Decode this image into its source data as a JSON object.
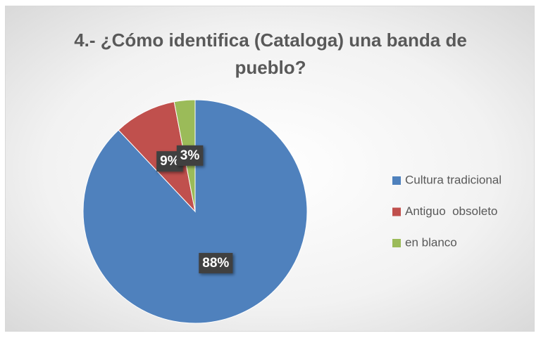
{
  "chart_data": {
    "type": "pie",
    "title": "4.- ¿Cómo identifica (Cataloga) una banda de pueblo?",
    "categories": [
      "Cultura tradicional",
      "Antiguo  obsoleto",
      "en blanco"
    ],
    "values": [
      88,
      9,
      3
    ],
    "value_labels": [
      "88%",
      "9%",
      "3%"
    ],
    "colors": [
      "#4f81bd",
      "#c0504d",
      "#9bbb59"
    ],
    "legend": "right"
  }
}
